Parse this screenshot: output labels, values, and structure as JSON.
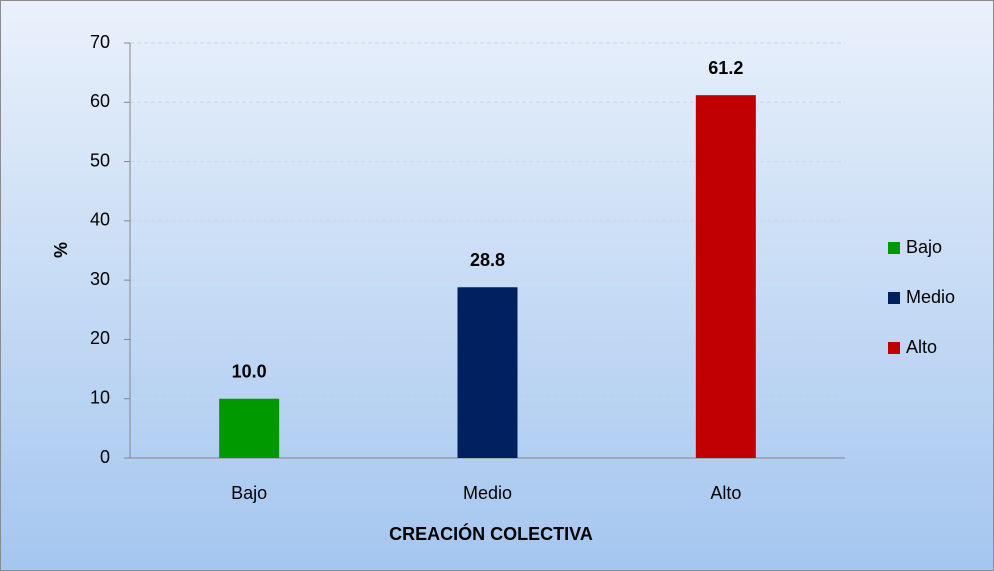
{
  "chart_data": {
    "type": "bar",
    "categories": [
      "Bajo",
      "Medio",
      "Alto"
    ],
    "values": [
      10.0,
      28.8,
      61.2
    ],
    "value_labels": [
      "10.0",
      "28.8",
      "61.2"
    ],
    "colors": [
      "#009900",
      "#002060",
      "#c00000"
    ],
    "xlabel": "CREACIÓN COLECTIVA",
    "ylabel": "%",
    "ylim": [
      0,
      70
    ],
    "yticks": [
      0,
      10,
      20,
      30,
      40,
      50,
      60,
      70
    ],
    "grid": true,
    "legend": "right"
  }
}
